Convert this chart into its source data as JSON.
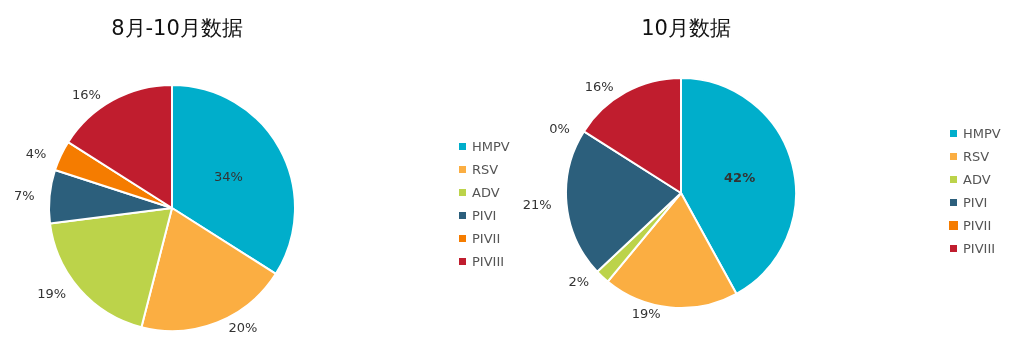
{
  "chart_data": [
    {
      "type": "pie",
      "title": "8月-10月数据",
      "categories": [
        "HMPV",
        "RSV",
        "ADV",
        "PIVI",
        "PIVII",
        "PIVIII"
      ],
      "values": [
        34,
        20,
        19,
        7,
        4,
        16
      ],
      "colors": [
        "#00aecb",
        "#fbae42",
        "#bcd34a",
        "#2c5f7c",
        "#f57c00",
        "#c01d2e"
      ],
      "value_labels": [
        "34%",
        "20%",
        "19%",
        "7%",
        "4%",
        "16%"
      ],
      "legend": "right"
    },
    {
      "type": "pie",
      "title": "10月数据",
      "categories": [
        "HMPV",
        "RSV",
        "ADV",
        "PIVI",
        "PIVII",
        "PIVIII"
      ],
      "values": [
        42,
        19,
        2,
        21,
        0,
        16
      ],
      "colors": [
        "#00aecb",
        "#fbae42",
        "#bcd34a",
        "#2c5f7c",
        "#f57c00",
        "#c01d2e"
      ],
      "value_labels": [
        "42%",
        "19%",
        "2%",
        "21%",
        "0%",
        "16%"
      ],
      "legend": "right"
    }
  ]
}
